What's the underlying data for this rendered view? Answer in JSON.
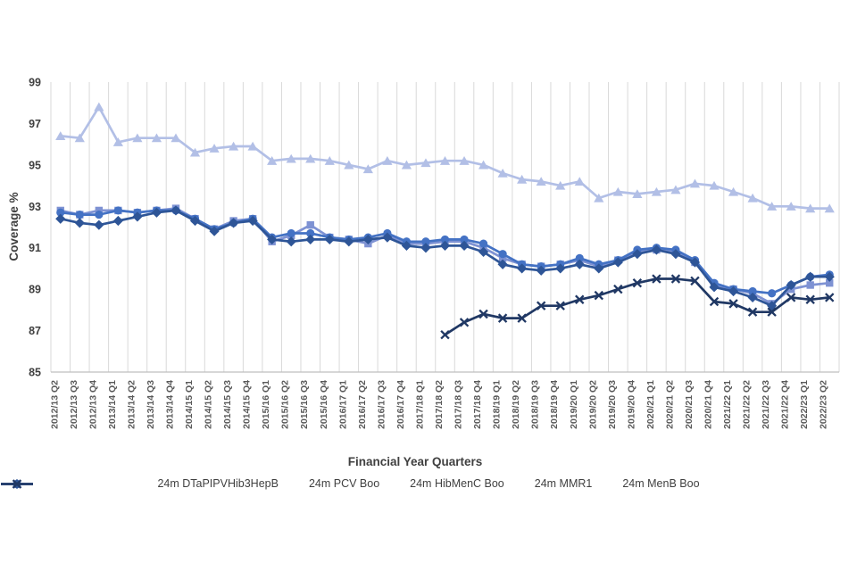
{
  "chart_data": {
    "type": "line",
    "xlabel": "Financial Year Quarters",
    "ylabel": "Coverage %",
    "ylim": [
      85,
      99
    ],
    "yticks": [
      85,
      87,
      89,
      91,
      93,
      95,
      97,
      99
    ],
    "grid": "vertical",
    "grid_color": "#d9d9d9",
    "axis_line_color": "#bfbfbf",
    "tick_text_color": "#595959",
    "title_text_color": "#404040",
    "legend_position": "bottom",
    "categories": [
      "2012/13 Q2",
      "2012/13 Q3",
      "2012/13 Q4",
      "2013/14 Q1",
      "2013/14 Q2",
      "2013/14 Q3",
      "2013/14 Q4",
      "2014/15 Q1",
      "2014/15 Q2",
      "2014/15 Q3",
      "2014/15 Q4",
      "2015/16 Q1",
      "2015/16 Q2",
      "2015/16 Q3",
      "2015/16 Q4",
      "2016/17 Q1",
      "2016/17 Q2",
      "2016/17 Q3",
      "2016/17 Q4",
      "2017/18 Q1",
      "2017/18 Q2",
      "2017/18 Q3",
      "2017/18 Q4",
      "2018/19 Q1",
      "2018/19 Q2",
      "2018/19 Q3",
      "2018/19 Q4",
      "2019/20 Q1",
      "2019/20 Q2",
      "2019/20 Q3",
      "2019/20 Q4",
      "2020/21 Q1",
      "2020/21 Q2",
      "2020/21 Q3",
      "2020/21 Q4",
      "2021/22 Q1",
      "2021/22 Q2",
      "2021/22 Q3",
      "2021/22 Q4",
      "2022/23 Q1",
      "2022/23 Q2"
    ],
    "series": [
      {
        "name": "24m DTaPIPVHib3HepB",
        "marker": "triangle",
        "color": "#b2bfe6",
        "values": [
          96.4,
          96.3,
          97.8,
          96.1,
          96.3,
          96.3,
          96.3,
          95.6,
          95.8,
          95.9,
          95.9,
          95.2,
          95.3,
          95.3,
          95.2,
          95.0,
          94.8,
          95.2,
          95.0,
          95.1,
          95.2,
          95.2,
          95.0,
          94.6,
          94.3,
          94.2,
          94.0,
          94.2,
          93.4,
          93.7,
          93.6,
          93.7,
          93.8,
          94.1,
          94.0,
          93.7,
          93.4,
          93.0,
          93.0,
          92.9,
          92.9
        ]
      },
      {
        "name": "24m PCV Boo",
        "marker": "square",
        "color": "#7e92d3",
        "values": [
          92.8,
          92.6,
          92.8,
          92.8,
          92.7,
          92.8,
          92.9,
          92.4,
          91.9,
          92.3,
          92.4,
          91.3,
          91.6,
          92.1,
          91.5,
          91.4,
          91.2,
          91.6,
          91.2,
          91.2,
          91.3,
          91.3,
          91.0,
          90.5,
          90.2,
          90.1,
          90.2,
          90.4,
          90.1,
          90.4,
          90.8,
          90.9,
          90.8,
          90.3,
          89.2,
          89.0,
          88.8,
          88.3,
          89.0,
          89.2,
          89.3
        ]
      },
      {
        "name": "24m HibMenC Boo",
        "marker": "circle",
        "color": "#4472c4",
        "values": [
          92.7,
          92.6,
          92.6,
          92.8,
          92.7,
          92.8,
          92.8,
          92.4,
          91.9,
          92.2,
          92.4,
          91.5,
          91.7,
          91.7,
          91.5,
          91.4,
          91.5,
          91.7,
          91.3,
          91.3,
          91.4,
          91.4,
          91.2,
          90.7,
          90.2,
          90.1,
          90.2,
          90.5,
          90.2,
          90.4,
          90.9,
          91.0,
          90.9,
          90.4,
          89.3,
          89.0,
          88.9,
          88.8,
          89.2,
          89.6,
          89.7
        ]
      },
      {
        "name": "24m MMR1",
        "marker": "diamond",
        "color": "#2e5597",
        "values": [
          92.4,
          92.2,
          92.1,
          92.3,
          92.5,
          92.7,
          92.8,
          92.3,
          91.8,
          92.2,
          92.3,
          91.4,
          91.3,
          91.4,
          91.4,
          91.3,
          91.4,
          91.5,
          91.1,
          91.0,
          91.1,
          91.1,
          90.8,
          90.2,
          90.0,
          89.9,
          90.0,
          90.2,
          90.0,
          90.3,
          90.7,
          90.9,
          90.7,
          90.3,
          89.1,
          88.9,
          88.6,
          88.2,
          89.2,
          89.6,
          89.6
        ]
      },
      {
        "name": "24m MenB Boo",
        "marker": "x",
        "color": "#203864",
        "values": [
          null,
          null,
          null,
          null,
          null,
          null,
          null,
          null,
          null,
          null,
          null,
          null,
          null,
          null,
          null,
          null,
          null,
          null,
          null,
          null,
          86.8,
          87.4,
          87.8,
          87.6,
          87.6,
          88.2,
          88.2,
          88.5,
          88.7,
          89.0,
          89.3,
          89.5,
          89.5,
          89.4,
          88.4,
          88.3,
          87.9,
          87.9,
          88.6,
          88.5,
          88.6
        ]
      }
    ]
  }
}
